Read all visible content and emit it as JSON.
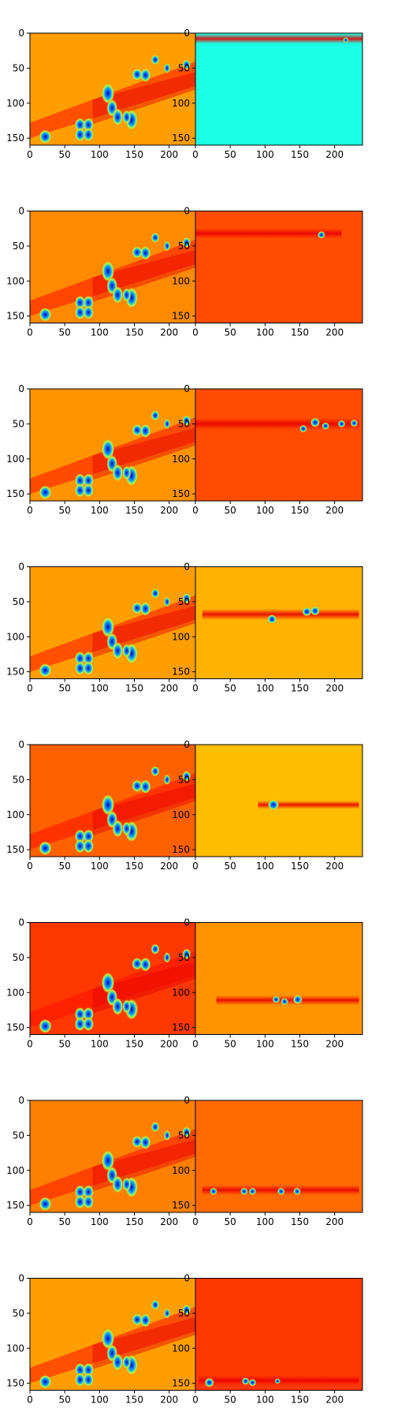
{
  "chart_data": {
    "type": "heatmap",
    "layout": {
      "rows": 8,
      "cols": 2
    },
    "colormap": "jet",
    "x_ticks": [
      0,
      50,
      100,
      150,
      200
    ],
    "y_ticks": [
      0,
      50,
      100,
      150
    ],
    "xlim": [
      0,
      240
    ],
    "ylim": [
      160,
      0
    ],
    "panels": [
      {
        "row": 0,
        "col": 0,
        "kind": "composite",
        "background": 0.72,
        "bright_rows": [],
        "blobs": []
      },
      {
        "row": 0,
        "col": 1,
        "kind": "single",
        "background": 0.4,
        "band": {
          "y": 8,
          "h": 14,
          "x0": 0,
          "x1": 240,
          "level": 0.88
        },
        "blobs": [
          {
            "x": 216,
            "y": 10,
            "r": 3
          }
        ]
      },
      {
        "row": 1,
        "col": 0,
        "kind": "composite",
        "background": 0.74,
        "bright_rows": [],
        "blobs": []
      },
      {
        "row": 1,
        "col": 1,
        "kind": "single",
        "background": 0.8,
        "band": {
          "y": 32,
          "h": 14,
          "x0": 0,
          "x1": 210,
          "level": 0.87
        },
        "blobs": [
          {
            "x": 181,
            "y": 34,
            "r": 4
          }
        ]
      },
      {
        "row": 2,
        "col": 0,
        "kind": "composite",
        "background": 0.73,
        "bright_rows": [],
        "blobs": []
      },
      {
        "row": 2,
        "col": 1,
        "kind": "single",
        "background": 0.8,
        "band": {
          "y": 50,
          "h": 16,
          "x0": 0,
          "x1": 235,
          "level": 0.87
        },
        "blobs": [
          {
            "x": 155,
            "y": 57,
            "r": 4
          },
          {
            "x": 172,
            "y": 48,
            "r": 5
          },
          {
            "x": 187,
            "y": 53,
            "r": 4
          },
          {
            "x": 210,
            "y": 50,
            "r": 4
          },
          {
            "x": 228,
            "y": 49,
            "r": 4
          }
        ]
      },
      {
        "row": 3,
        "col": 0,
        "kind": "composite",
        "background": 0.72,
        "bright_rows": [],
        "blobs": []
      },
      {
        "row": 3,
        "col": 1,
        "kind": "single",
        "background": 0.7,
        "band": {
          "y": 68,
          "h": 16,
          "x0": 10,
          "x1": 235,
          "level": 0.85
        },
        "blobs": [
          {
            "x": 110,
            "y": 75,
            "r": 5
          },
          {
            "x": 160,
            "y": 64,
            "r": 5
          },
          {
            "x": 172,
            "y": 63,
            "r": 5
          }
        ]
      },
      {
        "row": 4,
        "col": 0,
        "kind": "composite",
        "background": 0.78,
        "bright_rows": [],
        "blobs": []
      },
      {
        "row": 4,
        "col": 1,
        "kind": "single",
        "background": 0.69,
        "band": {
          "y": 86,
          "h": 12,
          "x0": 90,
          "x1": 235,
          "level": 0.8
        },
        "blobs": [
          {
            "x": 112,
            "y": 86,
            "r": 6
          }
        ]
      },
      {
        "row": 5,
        "col": 0,
        "kind": "composite",
        "background": 0.82,
        "bright_rows": [],
        "blobs": []
      },
      {
        "row": 5,
        "col": 1,
        "kind": "single",
        "background": 0.73,
        "band": {
          "y": 111,
          "h": 14,
          "x0": 30,
          "x1": 235,
          "level": 0.86
        },
        "blobs": [
          {
            "x": 116,
            "y": 110,
            "r": 4
          },
          {
            "x": 128,
            "y": 113,
            "r": 4
          },
          {
            "x": 147,
            "y": 110,
            "r": 5
          }
        ]
      },
      {
        "row": 6,
        "col": 0,
        "kind": "composite",
        "background": 0.75,
        "bright_rows": [],
        "blobs": []
      },
      {
        "row": 6,
        "col": 1,
        "kind": "single",
        "background": 0.77,
        "band": {
          "y": 128,
          "h": 14,
          "x0": 10,
          "x1": 235,
          "level": 0.87
        },
        "blobs": [
          {
            "x": 26,
            "y": 130,
            "r": 4
          },
          {
            "x": 70,
            "y": 130,
            "r": 4
          },
          {
            "x": 82,
            "y": 130,
            "r": 4
          },
          {
            "x": 123,
            "y": 130,
            "r": 4
          },
          {
            "x": 146,
            "y": 130,
            "r": 4
          }
        ]
      },
      {
        "row": 7,
        "col": 0,
        "kind": "composite",
        "background": 0.72,
        "bright_rows": [],
        "blobs": []
      },
      {
        "row": 7,
        "col": 1,
        "kind": "single",
        "background": 0.82,
        "band": {
          "y": 146,
          "h": 14,
          "x0": 5,
          "x1": 235,
          "level": 0.87
        },
        "blobs": [
          {
            "x": 20,
            "y": 149,
            "r": 5
          },
          {
            "x": 72,
            "y": 147,
            "r": 4
          },
          {
            "x": 82,
            "y": 149,
            "r": 4
          },
          {
            "x": 118,
            "y": 147,
            "r": 3
          }
        ]
      }
    ],
    "composite_blobs": [
      {
        "x": 22,
        "y": 148,
        "rx": 6,
        "ry": 8
      },
      {
        "x": 72,
        "y": 131,
        "rx": 5,
        "ry": 8
      },
      {
        "x": 84,
        "y": 131,
        "rx": 5,
        "ry": 8
      },
      {
        "x": 72,
        "y": 145,
        "rx": 5,
        "ry": 8
      },
      {
        "x": 84,
        "y": 145,
        "rx": 5,
        "ry": 8
      },
      {
        "x": 112,
        "y": 86,
        "rx": 6,
        "ry": 12
      },
      {
        "x": 118,
        "y": 107,
        "rx": 5,
        "ry": 10
      },
      {
        "x": 126,
        "y": 120,
        "rx": 5,
        "ry": 10
      },
      {
        "x": 146,
        "y": 124,
        "rx": 6,
        "ry": 12
      },
      {
        "x": 139,
        "y": 120,
        "rx": 4,
        "ry": 8
      },
      {
        "x": 154,
        "y": 59,
        "rx": 5,
        "ry": 7
      },
      {
        "x": 166,
        "y": 60,
        "rx": 5,
        "ry": 8
      },
      {
        "x": 180,
        "y": 38,
        "rx": 4,
        "ry": 6
      },
      {
        "x": 197,
        "y": 50,
        "rx": 3,
        "ry": 6
      },
      {
        "x": 225,
        "y": 45,
        "rx": 4,
        "ry": 6
      }
    ]
  }
}
